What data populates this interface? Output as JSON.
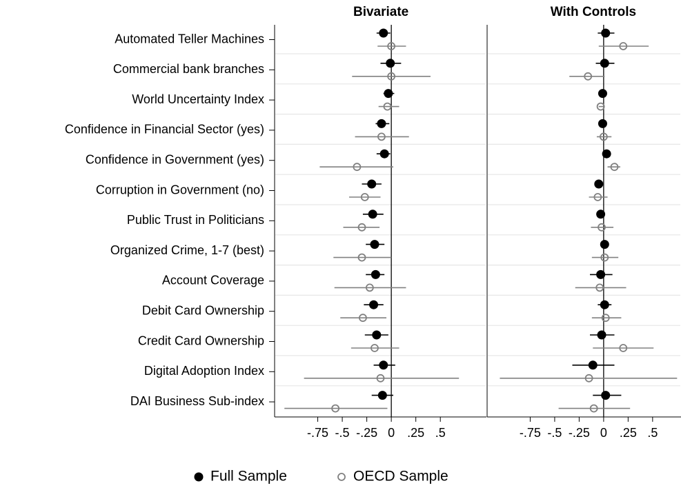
{
  "chart_data": [
    {
      "type": "coefplot",
      "title": "Bivariate",
      "categories": [
        "Automated Teller Machines",
        "Commercial bank branches",
        "World Uncertainty Index",
        "Confidence in Financial Sector (yes)",
        "Confidence in Government (yes)",
        "Corruption in Government (no)",
        "Public Trust in Politicians",
        "Organized Crime, 1-7 (best)",
        "Account Coverage",
        "Debit Card Ownership",
        "Credit Card Ownership",
        "Digital Adoption Index",
        "DAI Business Sub-index"
      ],
      "xlim": [
        -1.19,
        0.97
      ],
      "xticks": [
        {
          "value": -0.75,
          "label": "-.75"
        },
        {
          "value": -0.5,
          "label": "-.5"
        },
        {
          "value": -0.25,
          "label": "-.25"
        },
        0,
        {
          "value": 0.25,
          "label": ".25"
        },
        {
          "value": 0.5,
          "label": ".5"
        }
      ],
      "series": [
        {
          "name": "Full Sample",
          "color": "#000000",
          "marker": "filled",
          "values": [
            -0.08,
            -0.01,
            -0.03,
            -0.1,
            -0.07,
            -0.2,
            -0.19,
            -0.17,
            -0.16,
            -0.18,
            -0.15,
            -0.08,
            -0.09
          ],
          "low": [
            -0.15,
            -0.11,
            -0.08,
            -0.16,
            -0.15,
            -0.3,
            -0.29,
            -0.26,
            -0.26,
            -0.28,
            -0.27,
            -0.18,
            -0.2
          ],
          "high": [
            -0.01,
            0.1,
            0.03,
            -0.02,
            -0.01,
            -0.1,
            -0.08,
            -0.07,
            -0.07,
            -0.08,
            -0.03,
            0.04,
            0.02
          ]
        },
        {
          "name": "OECD Sample",
          "color": "#808080",
          "marker": "hollow",
          "values": [
            0.0,
            0.0,
            -0.04,
            -0.1,
            -0.35,
            -0.27,
            -0.3,
            -0.3,
            -0.22,
            -0.29,
            -0.17,
            -0.11,
            -0.57
          ],
          "low": [
            -0.14,
            -0.4,
            -0.13,
            -0.37,
            -0.73,
            -0.43,
            -0.49,
            -0.59,
            -0.58,
            -0.52,
            -0.41,
            -0.89,
            -1.09
          ],
          "high": [
            0.15,
            0.4,
            0.08,
            0.18,
            0.02,
            -0.11,
            -0.12,
            0.0,
            0.15,
            -0.05,
            0.08,
            0.69,
            -0.04
          ]
        }
      ]
    },
    {
      "type": "coefplot",
      "title": "With Controls",
      "xlim": [
        -1.19,
        0.79
      ],
      "xticks": [
        {
          "value": -0.75,
          "label": "-.75"
        },
        {
          "value": -0.5,
          "label": "-.5"
        },
        {
          "value": -0.25,
          "label": "-.25"
        },
        0,
        {
          "value": 0.25,
          "label": ".25"
        },
        {
          "value": 0.5,
          "label": ".5"
        }
      ],
      "series": [
        {
          "color": "#000000",
          "marker": "filled",
          "values": [
            0.02,
            0.01,
            -0.01,
            -0.01,
            0.03,
            -0.05,
            -0.03,
            0.01,
            -0.03,
            0.01,
            -0.02,
            -0.11,
            0.02
          ],
          "low": [
            -0.06,
            -0.08,
            -0.03,
            -0.04,
            0.01,
            -0.08,
            -0.06,
            -0.02,
            -0.14,
            -0.06,
            -0.14,
            -0.32,
            -0.11
          ],
          "high": [
            0.11,
            0.11,
            0.01,
            0.02,
            0.05,
            -0.01,
            0.01,
            0.05,
            0.09,
            0.08,
            0.11,
            0.11,
            0.18
          ]
        },
        {
          "color": "#808080",
          "marker": "hollow",
          "values": [
            0.2,
            -0.16,
            -0.03,
            0.0,
            0.11,
            -0.06,
            -0.02,
            0.01,
            -0.04,
            0.02,
            0.2,
            -0.15,
            -0.1
          ],
          "low": [
            -0.05,
            -0.35,
            -0.05,
            -0.07,
            0.04,
            -0.15,
            -0.13,
            -0.12,
            -0.29,
            -0.12,
            -0.11,
            -1.06,
            -0.46
          ],
          "high": [
            0.46,
            0.01,
            0.0,
            0.08,
            0.17,
            0.04,
            0.1,
            0.15,
            0.23,
            0.18,
            0.51,
            0.75,
            0.27
          ]
        }
      ]
    }
  ]
}
